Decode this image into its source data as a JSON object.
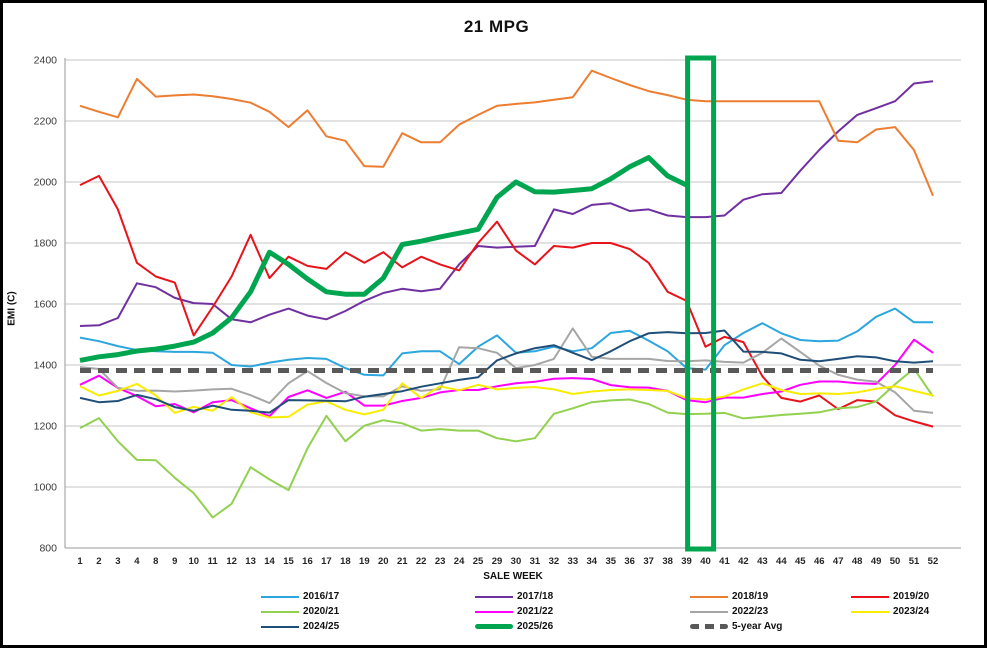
{
  "window": {
    "background": "#FFFFFF",
    "frame_color": "#000000"
  },
  "chart_data": {
    "type": "line",
    "title": "21 MPG",
    "xlabel": "SALE WEEK",
    "ylabel": "EMI (C)",
    "ylim": [
      800,
      2400
    ],
    "yticks": [
      800,
      1000,
      1200,
      1400,
      1600,
      1800,
      2000,
      2200,
      2400
    ],
    "grid": "horizontal-only",
    "legend_position": "bottom",
    "categories": [
      "1",
      "2",
      "3",
      "4",
      "8",
      "9",
      "10",
      "11",
      "12",
      "13",
      "14",
      "15",
      "16",
      "17",
      "18",
      "19",
      "20",
      "21",
      "22",
      "23",
      "24",
      "25",
      "29",
      "30",
      "31",
      "32",
      "33",
      "34",
      "35",
      "36",
      "37",
      "38",
      "39",
      "40",
      "41",
      "42",
      "43",
      "44",
      "45",
      "46",
      "47",
      "48",
      "49",
      "50",
      "51",
      "52"
    ],
    "series": [
      {
        "name": "2016/17",
        "color": "#2BA6DE",
        "width": 2,
        "values": [
          1490,
          1478,
          1462,
          1449,
          1445,
          1443,
          1443,
          1440,
          1400,
          1395,
          1408,
          1417,
          1423,
          1420,
          1390,
          1368,
          1366,
          1438,
          1445,
          1445,
          1403,
          1460,
          1497,
          1440,
          1445,
          1460,
          1445,
          1455,
          1505,
          1512,
          1480,
          1445,
          1390,
          1385,
          1465,
          1505,
          1537,
          1504,
          1482,
          1478,
          1480,
          1510,
          1558,
          1585,
          1540,
          1540
        ]
      },
      {
        "name": "2017/18",
        "color": "#7030A0",
        "width": 2,
        "values": [
          1528,
          1530,
          1554,
          1668,
          1655,
          1620,
          1603,
          1600,
          1550,
          1540,
          1565,
          1585,
          1562,
          1550,
          1577,
          1610,
          1636,
          1650,
          1642,
          1650,
          1730,
          1790,
          1785,
          1788,
          1790,
          1910,
          1895,
          1925,
          1930,
          1905,
          1910,
          1890,
          1885,
          1885,
          1890,
          1942,
          1960,
          1964,
          2037,
          2105,
          2166,
          2220,
          2242,
          2265,
          2323,
          2330
        ]
      },
      {
        "name": "2018/19",
        "color": "#ED7D31",
        "width": 2,
        "values": [
          2250,
          2230,
          2212,
          2338,
          2280,
          2284,
          2287,
          2281,
          2272,
          2260,
          2230,
          2180,
          2235,
          2150,
          2135,
          2052,
          2050,
          2160,
          2130,
          2130,
          2188,
          2220,
          2250,
          2256,
          2261,
          2270,
          2278,
          2365,
          2341,
          2318,
          2298,
          2285,
          2270,
          2265,
          2265,
          2265,
          2265,
          2265,
          2265,
          2265,
          2135,
          2130,
          2172,
          2180,
          2105,
          1955
        ]
      },
      {
        "name": "2019/20",
        "color": "#E8131A",
        "width": 2,
        "values": [
          1990,
          2020,
          1910,
          1735,
          1690,
          1670,
          1497,
          1590,
          1690,
          1827,
          1685,
          1755,
          1725,
          1715,
          1770,
          1735,
          1770,
          1720,
          1755,
          1730,
          1710,
          1800,
          1870,
          1775,
          1730,
          1790,
          1785,
          1800,
          1800,
          1780,
          1735,
          1640,
          1610,
          1460,
          1492,
          1475,
          1363,
          1292,
          1280,
          1300,
          1255,
          1285,
          1280,
          1235,
          1215,
          1198
        ]
      },
      {
        "name": "2020/21",
        "color": "#92D050",
        "width": 2,
        "values": [
          1193,
          1226,
          1150,
          1089,
          1088,
          1030,
          980,
          900,
          945,
          1065,
          1025,
          990,
          1127,
          1233,
          1150,
          1201,
          1219,
          1209,
          1185,
          1190,
          1185,
          1185,
          1160,
          1150,
          1160,
          1240,
          1258,
          1278,
          1284,
          1287,
          1272,
          1244,
          1239,
          1240,
          1243,
          1225,
          1230,
          1236,
          1240,
          1245,
          1258,
          1262,
          1280,
          1337,
          1388,
          1297
        ]
      },
      {
        "name": "2021/22",
        "color": "#FF00FF",
        "width": 2,
        "values": [
          1335,
          1365,
          1325,
          1298,
          1265,
          1272,
          1245,
          1278,
          1285,
          1258,
          1232,
          1295,
          1317,
          1292,
          1312,
          1267,
          1267,
          1282,
          1292,
          1310,
          1318,
          1318,
          1330,
          1340,
          1345,
          1355,
          1357,
          1354,
          1334,
          1327,
          1326,
          1315,
          1285,
          1278,
          1293,
          1293,
          1305,
          1313,
          1335,
          1346,
          1346,
          1340,
          1338,
          1400,
          1483,
          1440
        ]
      },
      {
        "name": "2022/23",
        "color": "#A6A6A6",
        "width": 2,
        "values": [
          1393,
          1387,
          1325,
          1315,
          1316,
          1313,
          1316,
          1320,
          1322,
          1301,
          1275,
          1340,
          1380,
          1341,
          1308,
          1297,
          1297,
          1330,
          1315,
          1321,
          1458,
          1455,
          1440,
          1390,
          1400,
          1420,
          1520,
          1427,
          1420,
          1420,
          1420,
          1413,
          1412,
          1415,
          1410,
          1408,
          1440,
          1487,
          1443,
          1398,
          1368,
          1352,
          1345,
          1310,
          1250,
          1243
        ]
      },
      {
        "name": "2023/24",
        "color": "#F8EC00",
        "width": 2,
        "values": [
          1330,
          1300,
          1315,
          1338,
          1300,
          1243,
          1263,
          1250,
          1295,
          1245,
          1228,
          1230,
          1270,
          1281,
          1253,
          1238,
          1253,
          1340,
          1292,
          1330,
          1317,
          1335,
          1320,
          1325,
          1328,
          1320,
          1305,
          1313,
          1318,
          1320,
          1318,
          1315,
          1291,
          1287,
          1297,
          1320,
          1340,
          1318,
          1305,
          1307,
          1305,
          1310,
          1322,
          1330,
          1315,
          1300
        ]
      },
      {
        "name": "2024/25",
        "color": "#1F4E79",
        "width": 2,
        "values": [
          1292,
          1278,
          1282,
          1302,
          1288,
          1262,
          1250,
          1267,
          1253,
          1250,
          1244,
          1285,
          1284,
          1283,
          1281,
          1296,
          1305,
          1314,
          1329,
          1340,
          1351,
          1360,
          1415,
          1438,
          1455,
          1465,
          1440,
          1416,
          1445,
          1478,
          1504,
          1508,
          1504,
          1505,
          1513,
          1444,
          1443,
          1438,
          1417,
          1412,
          1420,
          1429,
          1425,
          1412,
          1408,
          1412
        ]
      },
      {
        "name": "2025/26",
        "color": "#00A550",
        "width": 5,
        "values": [
          1415,
          1427,
          1434,
          1446,
          1452,
          1462,
          1475,
          1505,
          1555,
          1640,
          1770,
          1730,
          1682,
          1640,
          1632,
          1632,
          1685,
          1795,
          1806,
          1820,
          1832,
          1845,
          1950,
          2000,
          1968,
          1967,
          1972,
          1978,
          2010,
          2050,
          2080,
          2020,
          1990,
          null,
          null,
          null,
          null,
          null,
          null,
          null,
          null,
          null,
          null,
          null,
          null,
          null
        ]
      },
      {
        "name": "5-year Avg",
        "color": "#595959",
        "width": 5,
        "dashed": true,
        "constant": 1382
      }
    ],
    "highlight_box": {
      "from_week": "39",
      "to_week": "40",
      "color": "#00A550",
      "full_height": true
    },
    "legend_rows": [
      [
        "2016/17",
        "2017/18",
        "2018/19",
        "2019/20"
      ],
      [
        "2020/21",
        "2021/22",
        "2022/23",
        "2023/24"
      ],
      [
        "2024/25",
        "2025/26",
        "5-year Avg"
      ]
    ]
  }
}
